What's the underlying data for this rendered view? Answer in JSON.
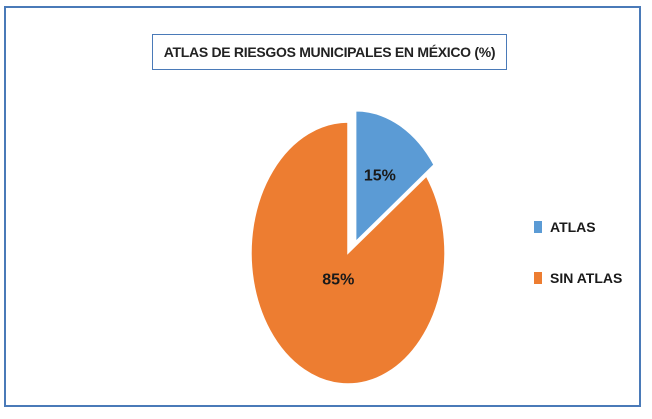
{
  "chart_data": {
    "type": "pie",
    "title": "ATLAS DE RIESGOS MUNICIPALES EN MÉXICO (%)",
    "slices": [
      {
        "name": "ATLAS",
        "value": 15,
        "label": "15%",
        "color": "#5b9bd5",
        "exploded": true
      },
      {
        "name": "SIN ATLAS",
        "value": 85,
        "label": "85%",
        "color": "#ed7d31",
        "exploded": false
      }
    ],
    "legend": {
      "placement": "right",
      "entries": [
        "ATLAS",
        "SIN ATLAS"
      ]
    }
  }
}
